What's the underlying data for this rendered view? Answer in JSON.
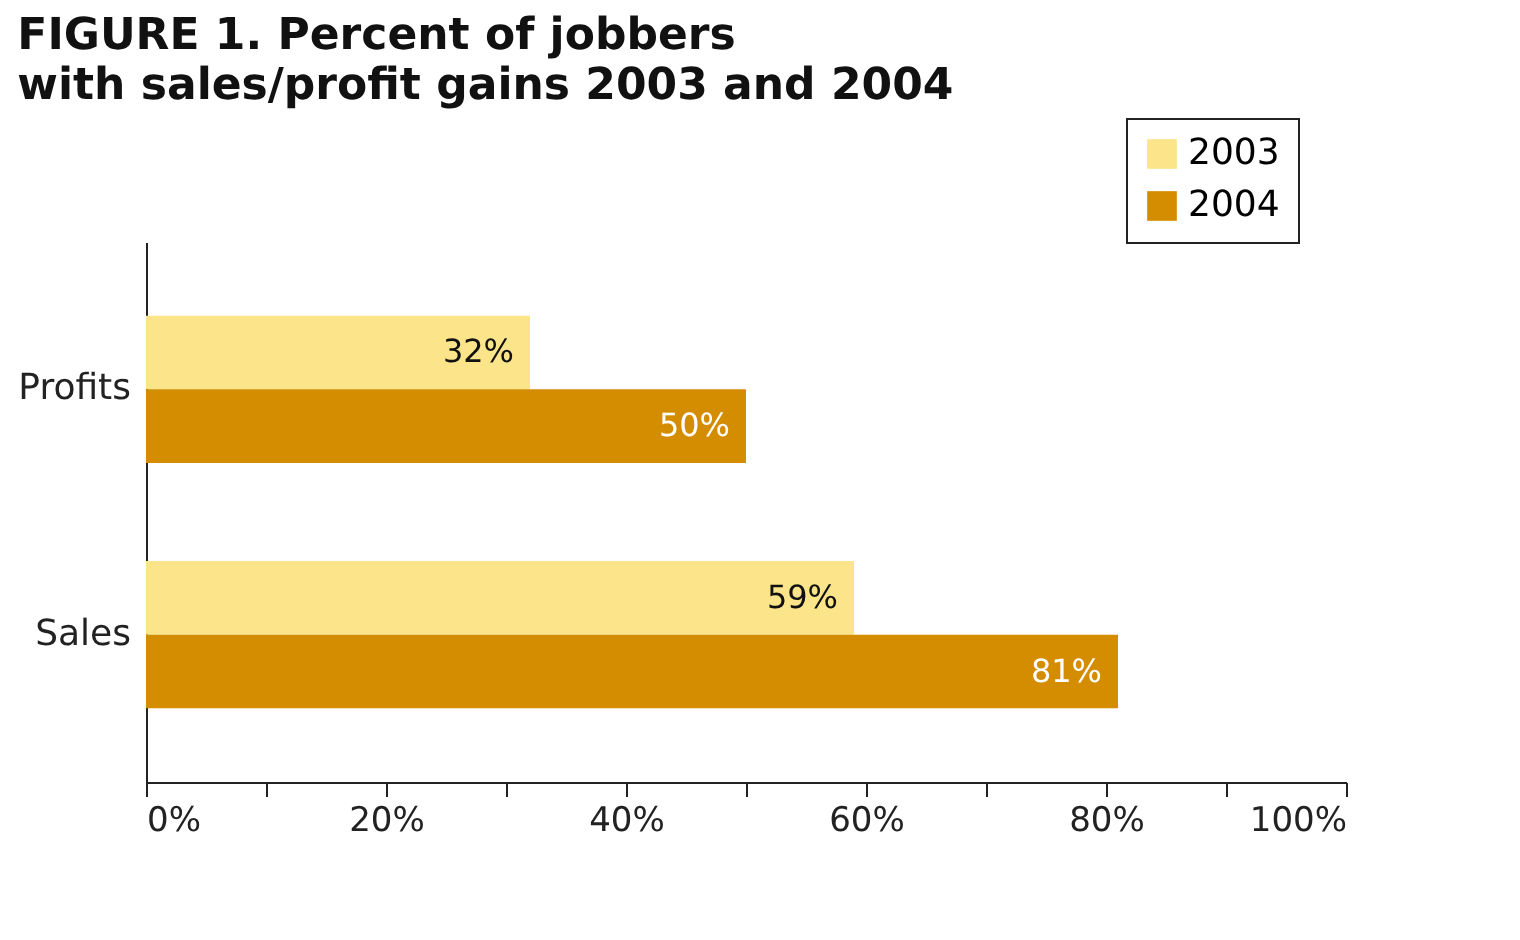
{
  "chart_data": {
    "type": "bar",
    "orientation": "horizontal",
    "title": "FIGURE 1. Percent of jobbers",
    "subtitle": "with sales/profit gains 2003 and 2004",
    "categories": [
      "Profits",
      "Sales"
    ],
    "series": [
      {
        "name": "2003",
        "color": "#fbe48a",
        "values": [
          32,
          59
        ],
        "value_labels": [
          "32%",
          "59%"
        ]
      },
      {
        "name": "2004",
        "color": "#d48c00",
        "values": [
          50,
          81
        ],
        "value_labels": [
          "50%",
          "81%"
        ]
      }
    ],
    "xlim": [
      0,
      100
    ],
    "xticks": [
      {
        "value": 0,
        "label": "0%"
      },
      {
        "value": 10,
        "label": null
      },
      {
        "value": 20,
        "label": "20%"
      },
      {
        "value": 30,
        "label": null
      },
      {
        "value": 40,
        "label": "40%"
      },
      {
        "value": 50,
        "label": null
      },
      {
        "value": 60,
        "label": "60%"
      },
      {
        "value": 70,
        "label": null
      },
      {
        "value": 80,
        "label": "80%"
      },
      {
        "value": 90,
        "label": null
      },
      {
        "value": 100,
        "label": "100%"
      }
    ],
    "legend": "top right",
    "grid": false
  }
}
